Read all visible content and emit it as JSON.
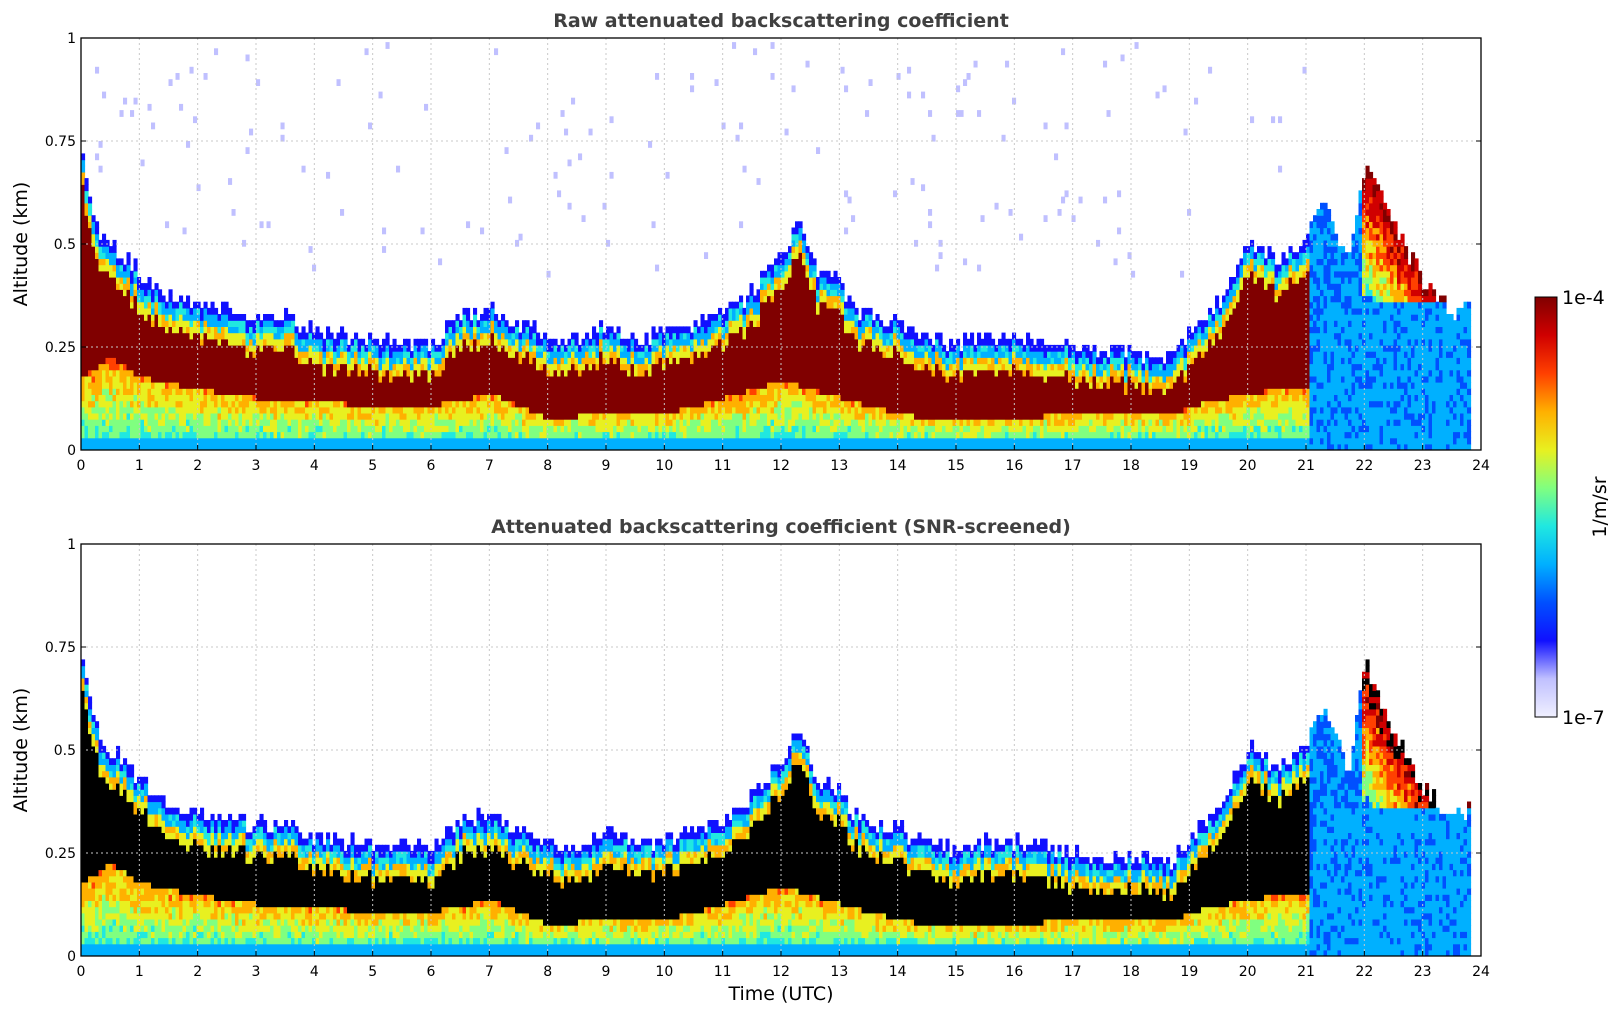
{
  "chart_data": [
    {
      "type": "heatmap",
      "title": "Raw attenuated backscattering coefficient",
      "xlabel": "",
      "ylabel": "Altitude (km)",
      "xlim": [
        0,
        24
      ],
      "ylim": [
        0,
        1
      ],
      "xticks": [
        "0",
        "1",
        "2",
        "3",
        "4",
        "5",
        "6",
        "7",
        "8",
        "9",
        "10",
        "11",
        "12",
        "13",
        "14",
        "15",
        "16",
        "17",
        "18",
        "19",
        "20",
        "21",
        "22",
        "23",
        "24"
      ],
      "yticks": [
        "0",
        "0.25",
        "0.5",
        "0.75",
        "1"
      ],
      "grid": true,
      "layer_top_km": {
        "time_utc": [
          0.0,
          0.1,
          0.3,
          0.6,
          1.0,
          1.5,
          2.0,
          2.5,
          3.0,
          3.5,
          4.0,
          5.0,
          6.0,
          6.5,
          7.0,
          7.5,
          8.0,
          8.5,
          9.0,
          9.5,
          10.0,
          10.5,
          11.0,
          11.5,
          12.0,
          12.3,
          12.6,
          13.0,
          13.2,
          13.5,
          14.0,
          14.5,
          15.0,
          15.5,
          16.0,
          17.0,
          18.0,
          18.7,
          19.0,
          19.5,
          20.0,
          20.5,
          21.0,
          21.3,
          21.7,
          22.0,
          22.3,
          22.6,
          23.0,
          23.5,
          23.8
        ],
        "top": [
          0.7,
          0.62,
          0.52,
          0.48,
          0.42,
          0.36,
          0.34,
          0.33,
          0.31,
          0.32,
          0.28,
          0.26,
          0.25,
          0.32,
          0.34,
          0.3,
          0.26,
          0.26,
          0.3,
          0.26,
          0.28,
          0.3,
          0.33,
          0.38,
          0.48,
          0.55,
          0.42,
          0.4,
          0.34,
          0.32,
          0.3,
          0.26,
          0.25,
          0.27,
          0.27,
          0.24,
          0.23,
          0.22,
          0.28,
          0.35,
          0.5,
          0.45,
          0.52,
          0.6,
          0.45,
          0.7,
          0.6,
          0.5,
          0.4,
          0.32,
          0.36
        ]
      },
      "cloud_base_km": {
        "time_utc": [
          0.0,
          0.5,
          1.0,
          2.0,
          3.0,
          4.0,
          5.0,
          6.0,
          7.0,
          8.0,
          9.0,
          10.0,
          11.0,
          12.0,
          13.0,
          14.0,
          15.0,
          16.0,
          17.0,
          18.0,
          18.7,
          19.0,
          20.0,
          21.0
        ],
        "base": [
          0.2,
          0.25,
          0.2,
          0.17,
          0.15,
          0.14,
          0.13,
          0.13,
          0.16,
          0.1,
          0.11,
          0.11,
          0.15,
          0.19,
          0.15,
          0.11,
          0.09,
          0.1,
          0.11,
          0.11,
          0.11,
          0.13,
          0.16,
          0.18
        ]
      },
      "noise_bursts_utc": [
        [
          6.7,
          7.7
        ],
        [
          11.0,
          13.3
        ],
        [
          19.6,
          21.0
        ],
        [
          21.0,
          23.8
        ]
      ],
      "clear_air_region": {
        "time_utc": [
          21.0,
          23.8
        ],
        "alt_km": [
          0,
          0.95
        ]
      }
    },
    {
      "type": "heatmap",
      "title": "Attenuated backscattering coefficient (SNR-screened)",
      "xlabel": "Time (UTC)",
      "ylabel": "Altitude (km)",
      "xlim": [
        0,
        24
      ],
      "ylim": [
        0,
        1
      ],
      "xticks": [
        "0",
        "1",
        "2",
        "3",
        "4",
        "5",
        "6",
        "7",
        "8",
        "9",
        "10",
        "11",
        "12",
        "13",
        "14",
        "15",
        "16",
        "17",
        "18",
        "19",
        "20",
        "21",
        "22",
        "23",
        "24"
      ],
      "yticks": [
        "0",
        "0.25",
        "0.5",
        "0.75",
        "1"
      ],
      "grid": true,
      "saturation_color": "#000000"
    }
  ],
  "colorbar": {
    "label": "1/m/sr",
    "max_label": "1e-4",
    "min_label": "1e-7",
    "scale": "log",
    "range": [
      1e-07,
      0.0001
    ],
    "colors": [
      "#f0f0ff",
      "#c0c0ff",
      "#1010ff",
      "#0050ff",
      "#00b0ff",
      "#20e8e0",
      "#80ff80",
      "#e8f020",
      "#ffb000",
      "#ff4000",
      "#d00000",
      "#800000"
    ]
  }
}
